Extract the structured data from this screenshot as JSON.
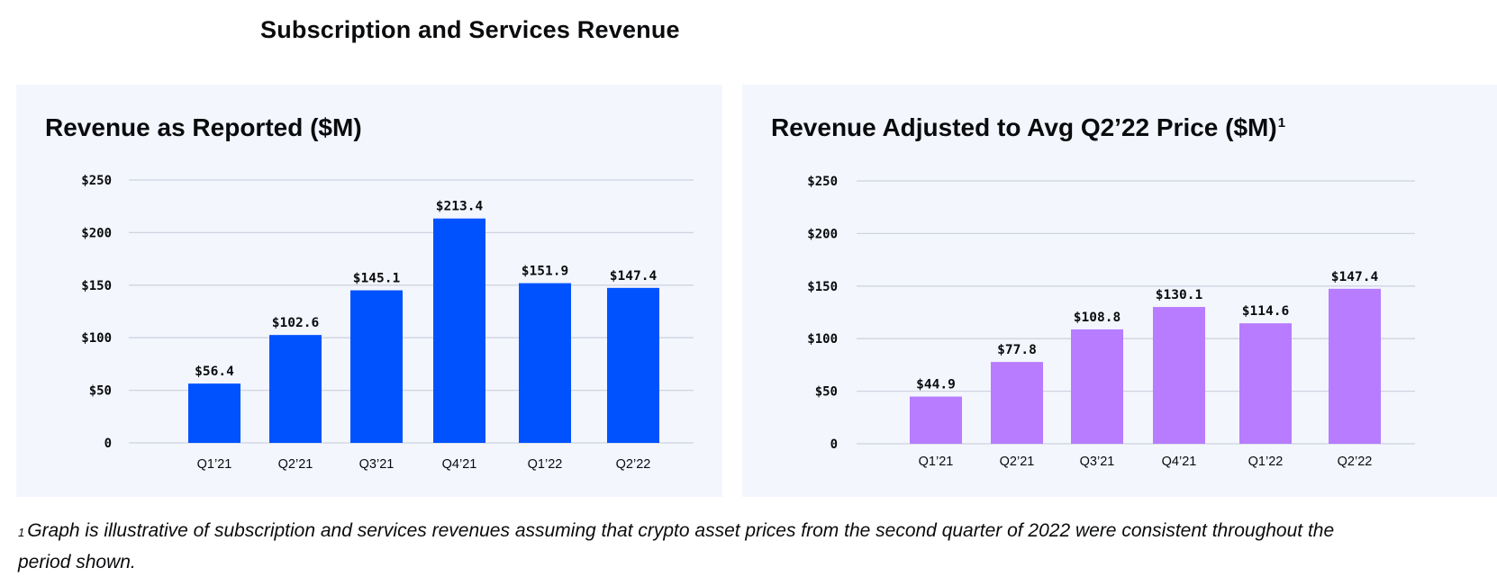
{
  "title": "Subscription and Services Revenue",
  "colors": {
    "panel_bg": "#f3f6fd",
    "reported": "#0052ff",
    "adjusted": "#b77cff",
    "grid": "#cfd4e0"
  },
  "chart_data": [
    {
      "type": "bar",
      "title": "Revenue as Reported ($M)",
      "footnote_marker": "",
      "categories": [
        "Q1’21",
        "Q2’21",
        "Q3’21",
        "Q4’21",
        "Q1’22",
        "Q2’22"
      ],
      "values": [
        56.4,
        102.6,
        145.1,
        213.4,
        151.9,
        147.4
      ],
      "data_labels": [
        "$56.4",
        "$102.6",
        "$145.1",
        "$213.4",
        "$151.9",
        "$147.4"
      ],
      "yticks": [
        "0",
        "$50",
        "$100",
        "$150",
        "$200",
        "$250"
      ],
      "ylim": [
        0,
        250
      ],
      "grid": true,
      "color": "#0052ff"
    },
    {
      "type": "bar",
      "title": "Revenue Adjusted to Avg Q2’22 Price ($M)",
      "footnote_marker": "1",
      "categories": [
        "Q1’21",
        "Q2’21",
        "Q3’21",
        "Q4’21",
        "Q1’22",
        "Q2’22"
      ],
      "values": [
        44.9,
        77.8,
        108.8,
        130.1,
        114.6,
        147.4
      ],
      "data_labels": [
        "$44.9",
        "$77.8",
        "$108.8",
        "$130.1",
        "$114.6",
        "$147.4"
      ],
      "yticks": [
        "0",
        "$50",
        "$100",
        "$150",
        "$200",
        "$250"
      ],
      "ylim": [
        0,
        250
      ],
      "grid": true,
      "color": "#b77cff"
    }
  ],
  "footnote": {
    "marker": "1",
    "text": "Graph is illustrative of subscription and services revenues assuming that crypto asset prices from the second quarter of 2022 were consistent throughout the period shown."
  }
}
